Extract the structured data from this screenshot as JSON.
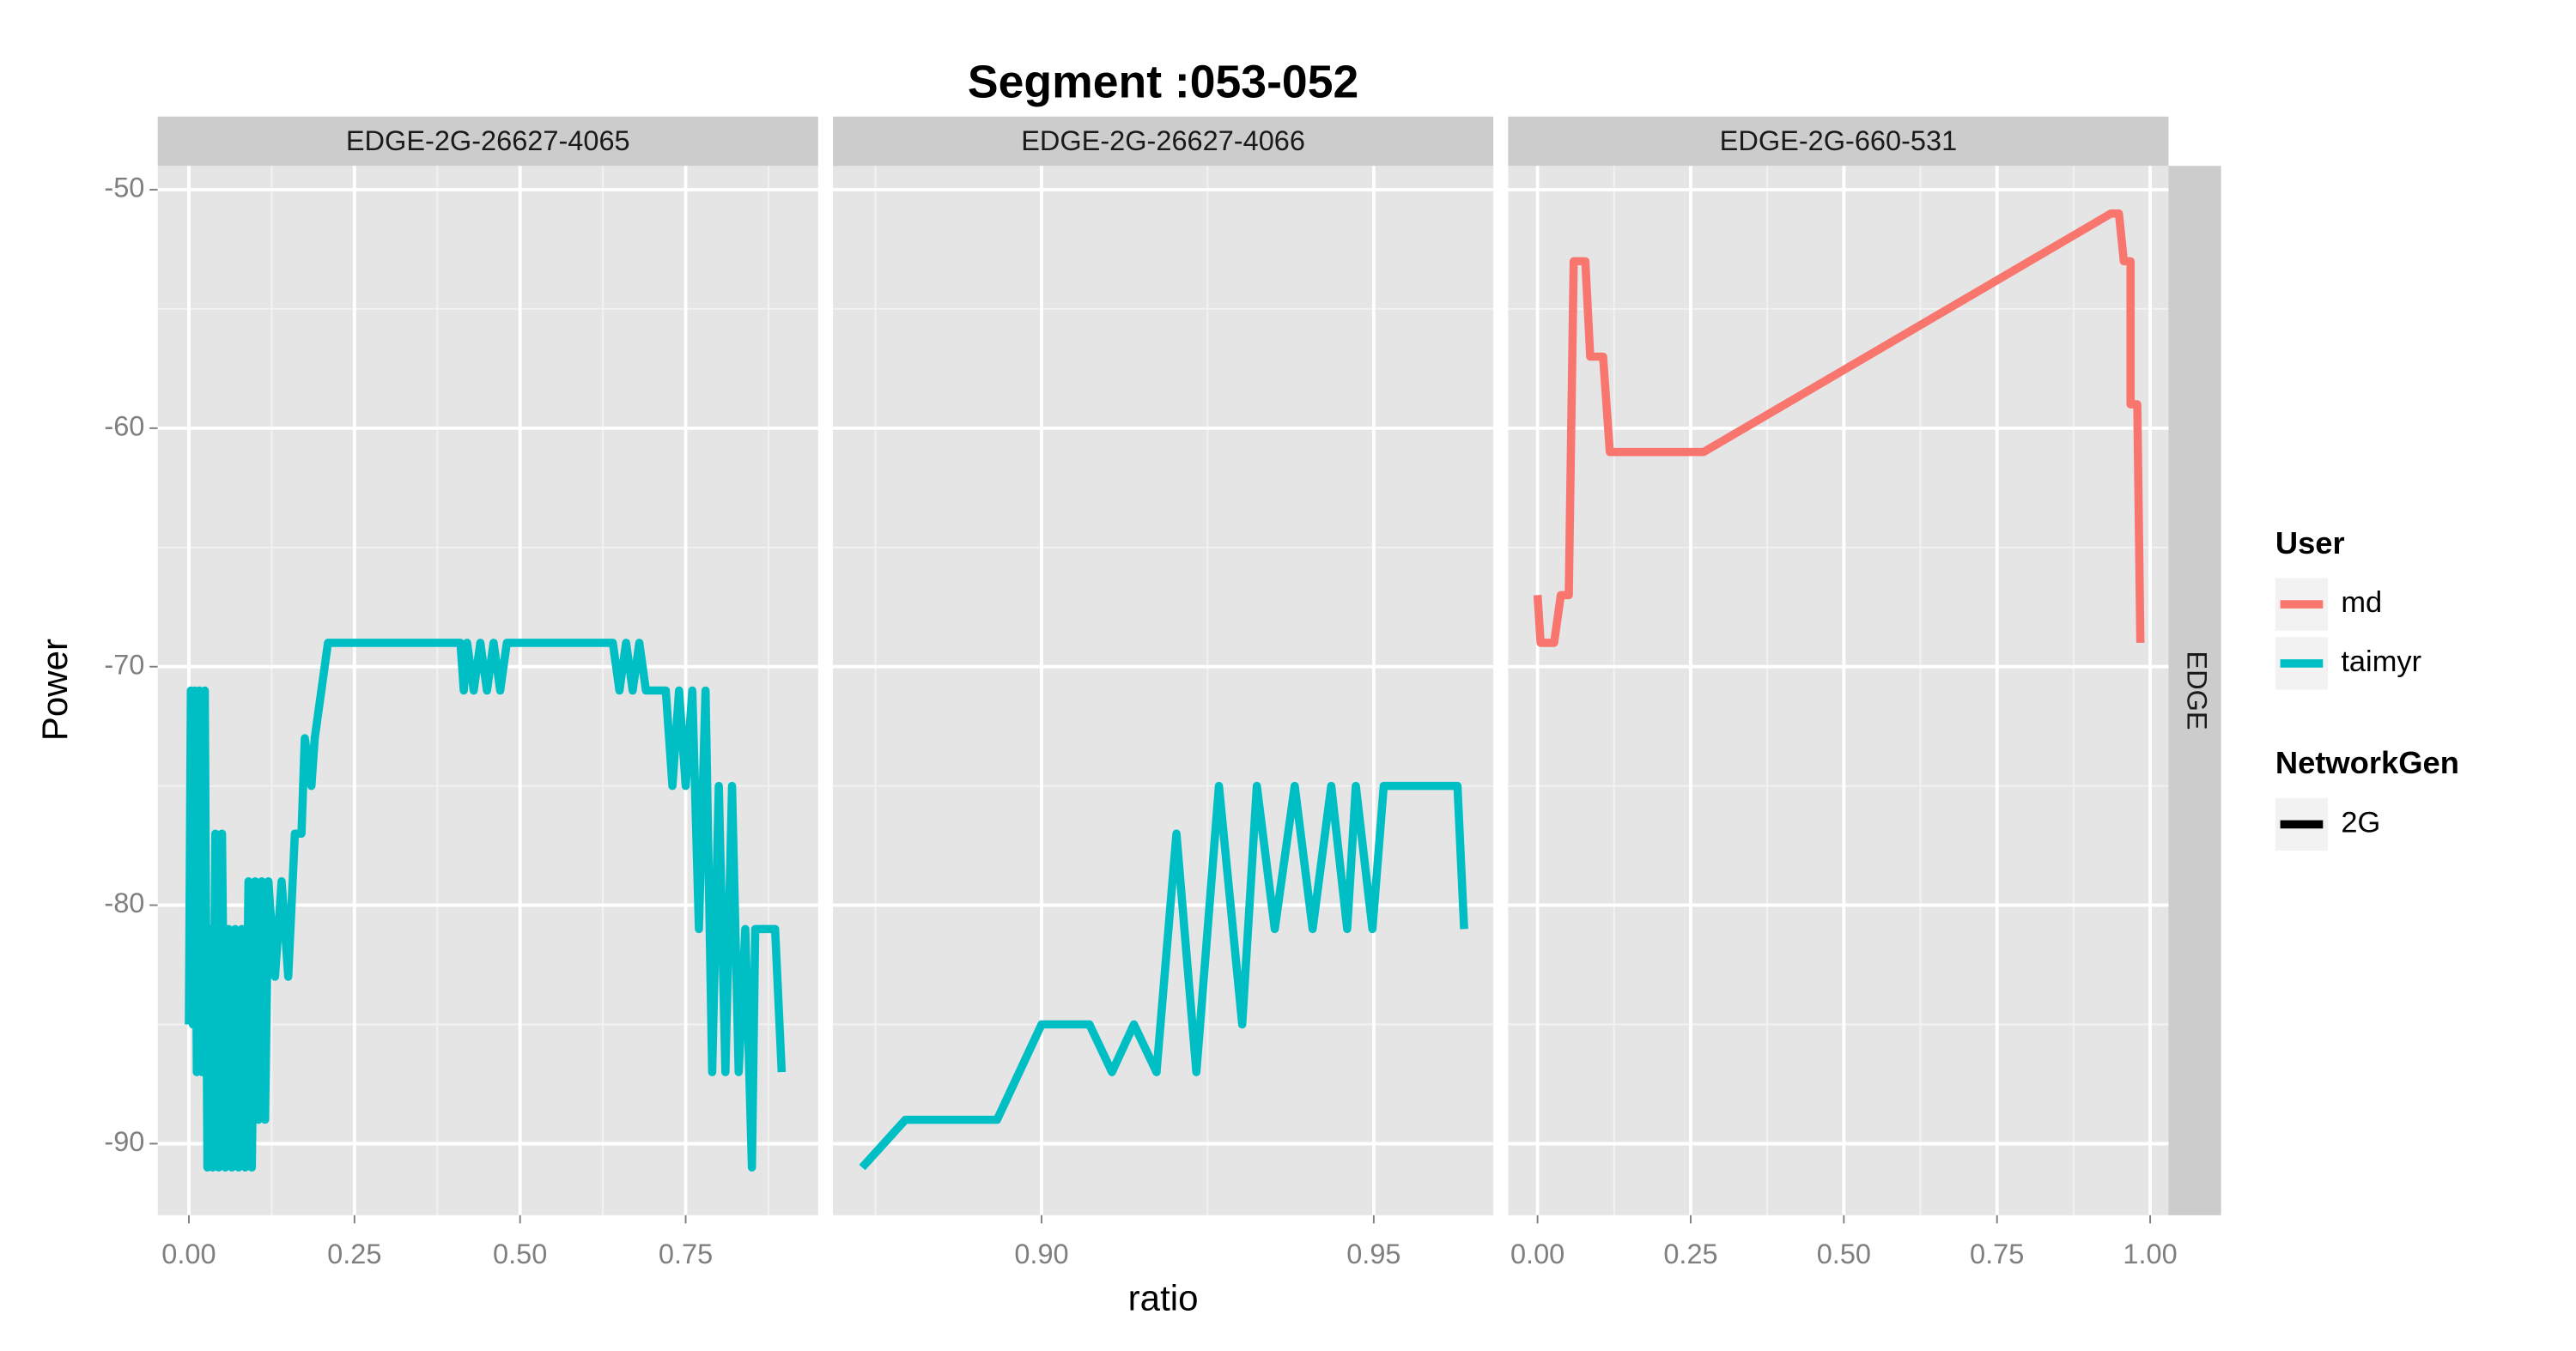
{
  "chart_data": {
    "type": "line",
    "title": "Segment :053-052",
    "xlabel": "ratio",
    "ylabel": "Power",
    "ylim": [
      -93,
      -49
    ],
    "yticks": [
      -50,
      -60,
      -70,
      -80,
      -90
    ],
    "grid": true,
    "row_strip": "EDGE",
    "panels": [
      {
        "label": "EDGE-2G-26627-4065",
        "xlim": [
          -0.047,
          0.95
        ],
        "xticks": [
          {
            "value": 0,
            "label": "0.00"
          },
          0.25,
          {
            "value": 0.5,
            "label": "0.50"
          },
          0.75
        ],
        "series": [
          {
            "name": "taimyr",
            "color": "#00BFC4",
            "x": [
              0.0,
              0.003,
              0.006,
              0.009,
              0.012,
              0.016,
              0.02,
              0.024,
              0.028,
              0.032,
              0.036,
              0.04,
              0.045,
              0.05,
              0.055,
              0.06,
              0.065,
              0.07,
              0.075,
              0.08,
              0.085,
              0.09,
              0.095,
              0.1,
              0.105,
              0.11,
              0.115,
              0.12,
              0.13,
              0.14,
              0.15,
              0.16,
              0.17,
              0.175,
              0.185,
              0.19,
              0.21,
              0.41,
              0.415,
              0.42,
              0.43,
              0.44,
              0.45,
              0.46,
              0.47,
              0.48,
              0.64,
              0.65,
              0.66,
              0.67,
              0.68,
              0.69,
              0.72,
              0.73,
              0.74,
              0.75,
              0.76,
              0.77,
              0.78,
              0.79,
              0.8,
              0.81,
              0.82,
              0.83,
              0.84,
              0.85,
              0.855,
              0.885,
              0.895
            ],
            "values": [
              -85,
              -71,
              -85,
              -71,
              -87,
              -71,
              -87,
              -71,
              -91,
              -81,
              -91,
              -77,
              -91,
              -77,
              -91,
              -81,
              -91,
              -81,
              -91,
              -81,
              -91,
              -79,
              -91,
              -79,
              -89,
              -79,
              -89,
              -79,
              -83,
              -79,
              -83,
              -77,
              -77,
              -73,
              -75,
              -73,
              -69,
              -69,
              -71,
              -69,
              -71,
              -69,
              -71,
              -69,
              -71,
              -69,
              -69,
              -71,
              -69,
              -71,
              -69,
              -71,
              -71,
              -75,
              -71,
              -75,
              -71,
              -81,
              -71,
              -87,
              -75,
              -87,
              -75,
              -87,
              -81,
              -91,
              -81,
              -81,
              -87
            ]
          }
        ]
      },
      {
        "label": "EDGE-2G-26627-4066",
        "xlim": [
          0.8686,
          0.968
        ],
        "xticks": [
          {
            "value": 0.9,
            "label": "0.90"
          },
          0.95
        ],
        "series": [
          {
            "name": "taimyr",
            "color": "#00BFC4",
            "x": [
              0.873,
              0.8795,
              0.8933,
              0.9,
              0.9072,
              0.9106,
              0.9139,
              0.9173,
              0.9203,
              0.9233,
              0.9267,
              0.9302,
              0.9324,
              0.9351,
              0.9381,
              0.9408,
              0.9436,
              0.946,
              0.9473,
              0.9498,
              0.9515,
              0.9626,
              0.9636
            ],
            "values": [
              -91,
              -89,
              -89,
              -85,
              -85,
              -87,
              -85,
              -87,
              -77,
              -87,
              -75,
              -85,
              -75,
              -81,
              -75,
              -81,
              -75,
              -81,
              -75,
              -81,
              -75,
              -75,
              -81
            ]
          }
        ]
      },
      {
        "label": "EDGE-2G-660-531",
        "xlim": [
          -0.048,
          1.03
        ],
        "xticks": [
          {
            "value": 0,
            "label": "0.00"
          },
          0.25,
          {
            "value": 0.5,
            "label": "0.50"
          },
          0.75,
          {
            "value": 1,
            "label": "1.00"
          }
        ],
        "series": [
          {
            "name": "md",
            "color": "#F8766D",
            "x": [
              0,
              0.005,
              0.027,
              0.038,
              0.051,
              0.059,
              0.078,
              0.086,
              0.107,
              0.118,
              0.271,
              0.936,
              0.949,
              0.957,
              0.968,
              0.968,
              0.979,
              0.981,
              0.984
            ],
            "values": [
              -67,
              -69,
              -69,
              -67,
              -67,
              -53,
              -53,
              -57,
              -57,
              -61,
              -61,
              -51,
              -51,
              -53,
              -53,
              -59,
              -59,
              -63,
              -69
            ]
          }
        ]
      }
    ],
    "legends": [
      {
        "title": "User",
        "items": [
          {
            "name": "md",
            "color": "#F8766D"
          },
          {
            "name": "taimyr",
            "color": "#00BFC4"
          }
        ]
      },
      {
        "title": "NetworkGen",
        "items": [
          {
            "name": "2G",
            "color": "#000000"
          }
        ]
      }
    ]
  }
}
